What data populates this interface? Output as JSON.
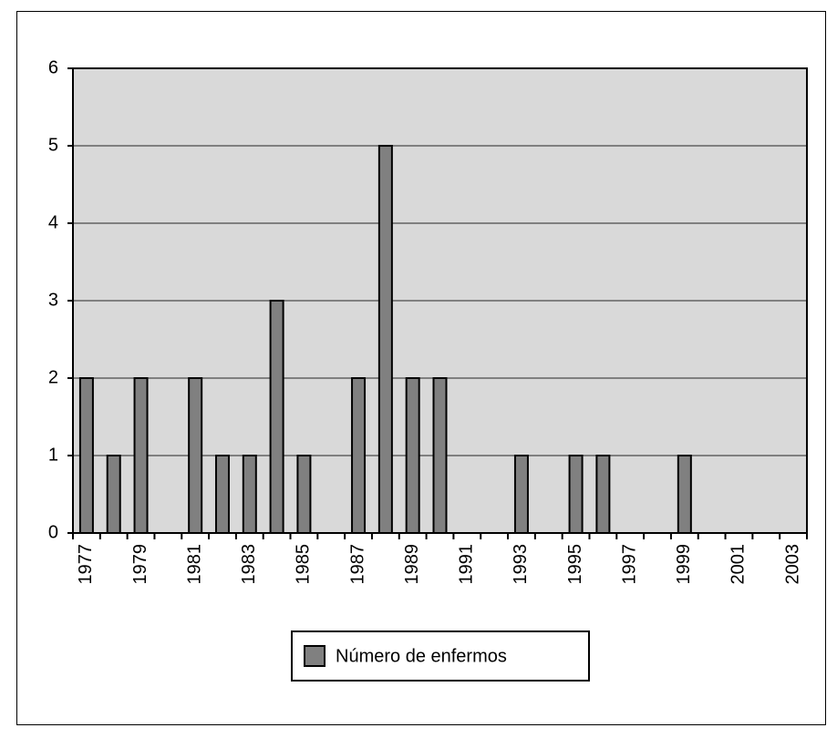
{
  "chart_data": {
    "type": "bar",
    "categories": [
      "1977",
      null,
      "1979",
      null,
      "1981",
      null,
      "1983",
      null,
      "1985",
      null,
      "1987",
      null,
      "1989",
      null,
      "1991",
      null,
      "1993",
      null,
      "1995",
      null,
      "1997",
      null,
      "1999",
      null,
      "2001",
      null,
      "2003"
    ],
    "series": [
      {
        "name": "Número de enfermos",
        "color": "#808080",
        "values": [
          2,
          1,
          2,
          0,
          2,
          1,
          1,
          3,
          1,
          0,
          2,
          5,
          2,
          2,
          0,
          0,
          1,
          0,
          1,
          1,
          0,
          0,
          1,
          0,
          0,
          0,
          0
        ]
      }
    ],
    "ylim": [
      0,
      6
    ],
    "yticks": [
      0,
      1,
      2,
      3,
      4,
      5,
      6
    ],
    "grid": true,
    "legend": "bottom"
  }
}
